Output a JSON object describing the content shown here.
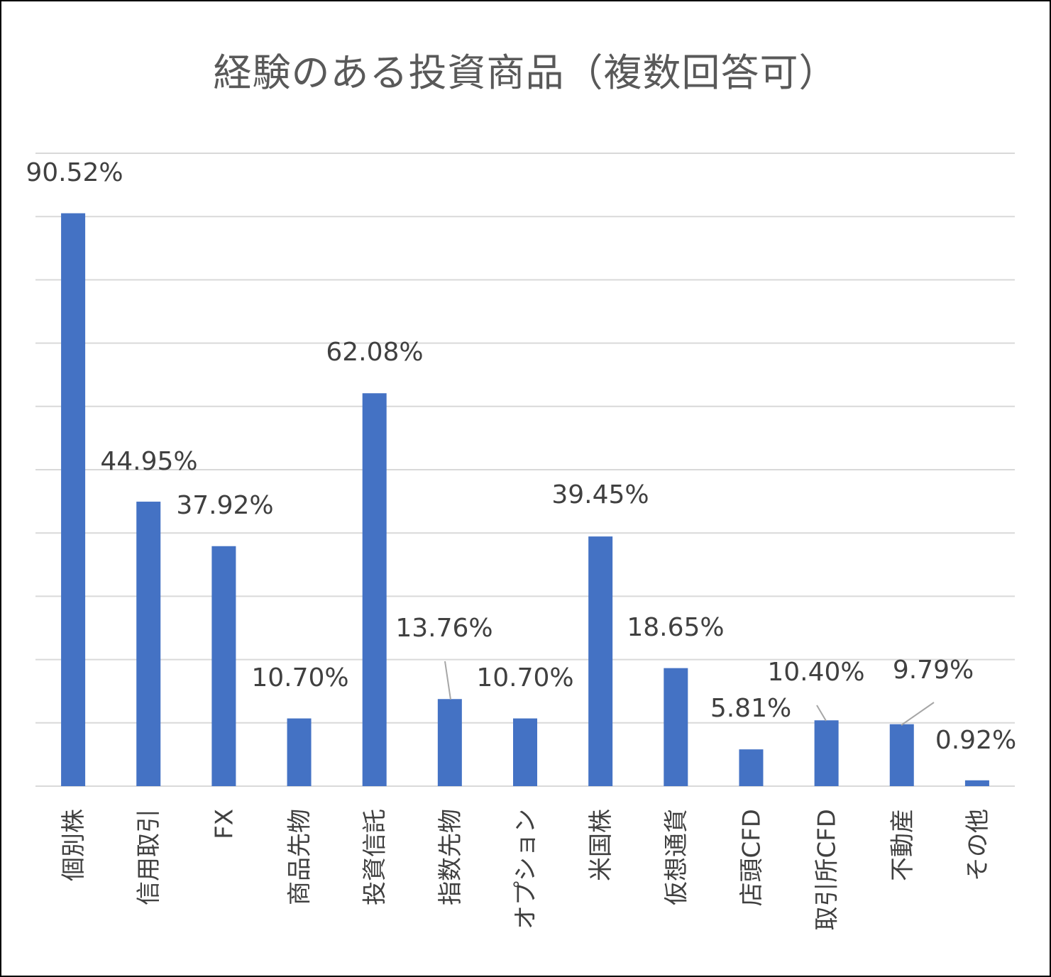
{
  "chart_data": {
    "type": "bar",
    "title": "経験のある投資商品（複数回答可）",
    "categories": [
      "個別株",
      "信用取引",
      "FX",
      "商品先物",
      "投資信託",
      "指数先物",
      "オプション",
      "米国株",
      "仮想通貨",
      "店頭CFD",
      "取引所CFD",
      "不動産",
      "その他"
    ],
    "series": [
      {
        "values": [
          90.52,
          44.95,
          37.92,
          10.7,
          62.08,
          13.76,
          10.7,
          39.45,
          18.65,
          5.81,
          10.4,
          9.79,
          0.92
        ],
        "labels": [
          "90.52%",
          "44.95%",
          "37.92%",
          "10.70%",
          "62.08%",
          "13.76%",
          "10.70%",
          "39.45%",
          "18.65%",
          "5.81%",
          "10.40%",
          "9.79%",
          "0.92%"
        ]
      }
    ],
    "ylim": [
      0,
      100
    ],
    "gridlines": true,
    "y_axis_labels": false,
    "bar_color": "#4472C4",
    "gridline_color": "#D9D9D9",
    "legend": "none"
  }
}
